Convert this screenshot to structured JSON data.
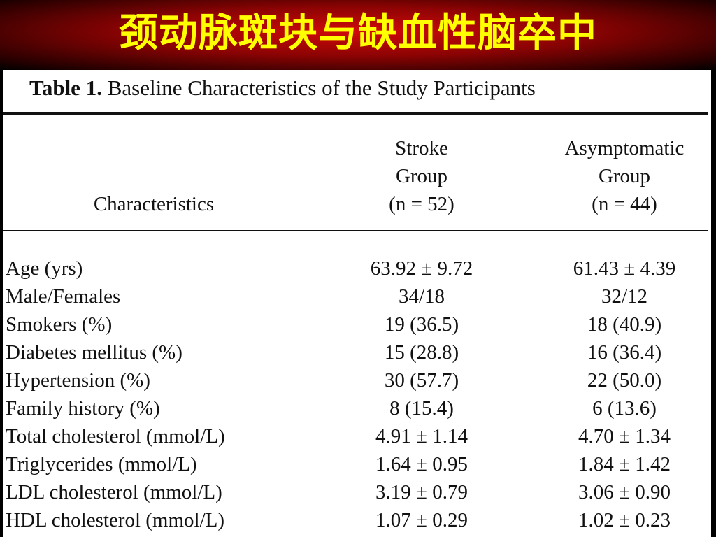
{
  "slide": {
    "title": "颈动脉斑块与缺血性脑卒中"
  },
  "table": {
    "caption_lead": "Table 1.",
    "caption_text": "Baseline Characteristics of the Study Participants",
    "header": {
      "characteristics": "Characteristics",
      "col1": [
        "Stroke",
        "Group",
        "(n = 52)"
      ],
      "col2": [
        "Asymptomatic",
        "Group",
        "(n = 44)"
      ]
    },
    "rows": [
      {
        "label": "Age (yrs)",
        "stroke": "63.92 ± 9.72",
        "asymptomatic": "61.43 ± 4.39"
      },
      {
        "label": "Male/Females",
        "stroke": "34/18",
        "asymptomatic": "32/12"
      },
      {
        "label": "Smokers (%)",
        "stroke": "19 (36.5)",
        "asymptomatic": "18 (40.9)"
      },
      {
        "label": "Diabetes mellitus (%)",
        "stroke": "15 (28.8)",
        "asymptomatic": "16 (36.4)"
      },
      {
        "label": "Hypertension (%)",
        "stroke": "30 (57.7)",
        "asymptomatic": "22 (50.0)"
      },
      {
        "label": "Family history (%)",
        "stroke": "8 (15.4)",
        "asymptomatic": "6 (13.6)"
      },
      {
        "label": "Total cholesterol (mmol/L)",
        "stroke": "4.91 ± 1.14",
        "asymptomatic": "4.70 ± 1.34"
      },
      {
        "label": "Triglycerides (mmol/L)",
        "stroke": "1.64 ± 0.95",
        "asymptomatic": "1.84 ± 1.42"
      },
      {
        "label": "LDL cholesterol (mmol/L)",
        "stroke": "3.19 ± 0.79",
        "asymptomatic": "3.06 ± 0.90"
      },
      {
        "label": "HDL cholesterol (mmol/L)",
        "stroke": "1.07 ± 0.29",
        "asymptomatic": "1.02 ± 0.23"
      }
    ]
  },
  "colors": {
    "banner_red": "#d10a0a",
    "title_yellow": "#ffff00",
    "paper": "#ffffff",
    "ink": "#111111"
  }
}
